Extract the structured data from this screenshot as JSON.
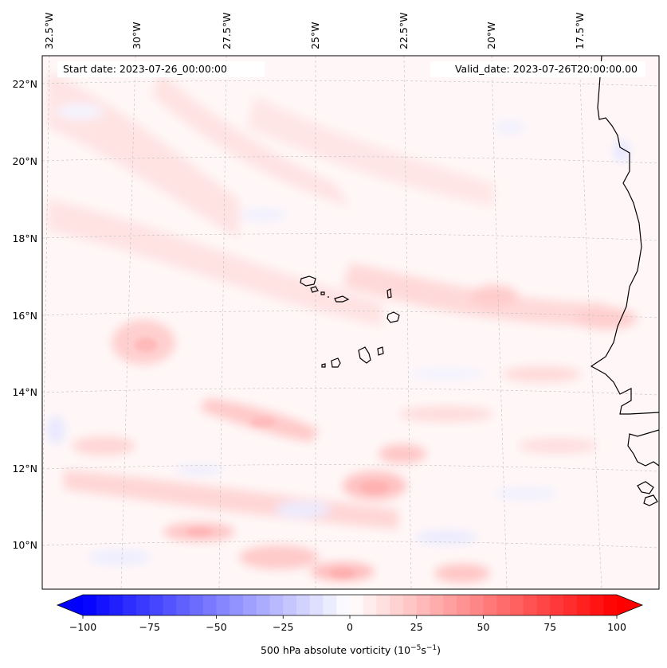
{
  "header": {
    "start_date": "Start date: 2023-07-26_00:00:00",
    "valid_date": "Valid_date: 2023-07-26T20:00:00.00"
  },
  "map": {
    "lon_labels": [
      "32.5°W",
      "30°W",
      "27.5°W",
      "25°W",
      "22.5°W",
      "20°W",
      "17.5°W"
    ],
    "lat_labels": [
      "22°N",
      "20°N",
      "18°N",
      "16°N",
      "14°N",
      "12°N",
      "10°N"
    ],
    "field": "500 hPa absolute vorticity",
    "colors": {
      "negative": "#0000ff",
      "zero": "#ffffff",
      "positive": "#ff0000"
    }
  },
  "colorbar": {
    "label": "500 hPa absolute vorticity (10",
    "label_exp1": "−5",
    "label_mid": "s",
    "label_exp2": "−1",
    "label_end": ")",
    "ticks": [
      "−100",
      "−75",
      "−50",
      "−25",
      "0",
      "25",
      "50",
      "75",
      "100"
    ],
    "min": -100,
    "max": 100
  }
}
